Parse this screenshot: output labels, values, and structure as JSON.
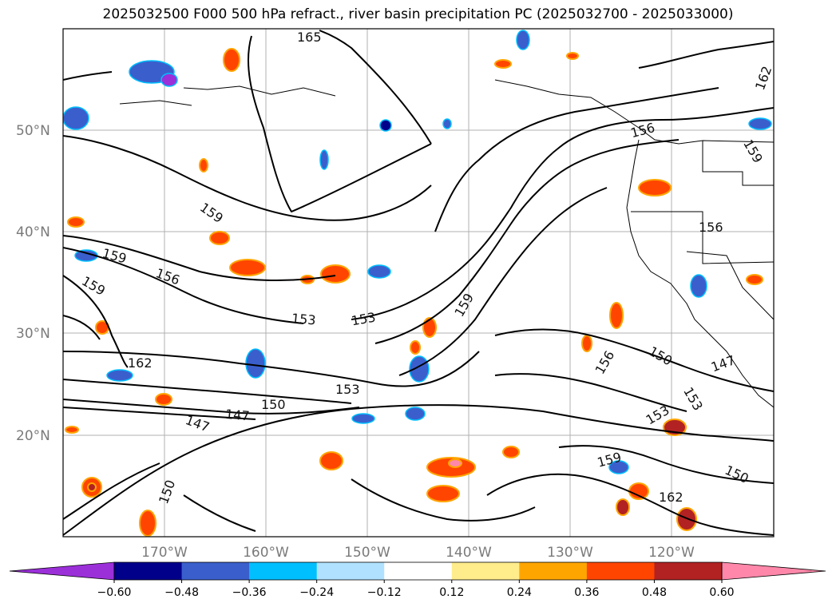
{
  "title": "2025032500 F000 500 hPa refract., river basin precipitation PC (2025032700 - 2025033000)",
  "map": {
    "lat_labels": [
      "50°N",
      "40°N",
      "30°N",
      "20°N"
    ],
    "lon_labels": [
      "170°W",
      "160°W",
      "150°W",
      "140°W",
      "130°W",
      "120°W"
    ],
    "contour_labels": [
      "165",
      "162",
      "159",
      "156",
      "159",
      "156",
      "159",
      "156",
      "153",
      "153",
      "153",
      "150",
      "147",
      "147",
      "150",
      "159",
      "159",
      "156",
      "150",
      "147",
      "153",
      "153",
      "159",
      "162",
      "150",
      "162"
    ]
  },
  "colorbar": {
    "colors": [
      "#9b30d9",
      "#00008b",
      "#3a5fcd",
      "#00bfff",
      "#b0e2ff",
      "#ffffff",
      "#ffec8b",
      "#ffa500",
      "#ff4500",
      "#b22222",
      "#ff88aa"
    ],
    "ticks": [
      "−0.60",
      "−0.48",
      "−0.36",
      "−0.24",
      "−0.12",
      "0.12",
      "0.24",
      "0.36",
      "0.48",
      "0.60"
    ]
  },
  "palette": {
    "positive": "#ff4500",
    "positive_edge": "#ffa500",
    "negative": "#3a5fcd",
    "negative_edge": "#00bfff"
  }
}
